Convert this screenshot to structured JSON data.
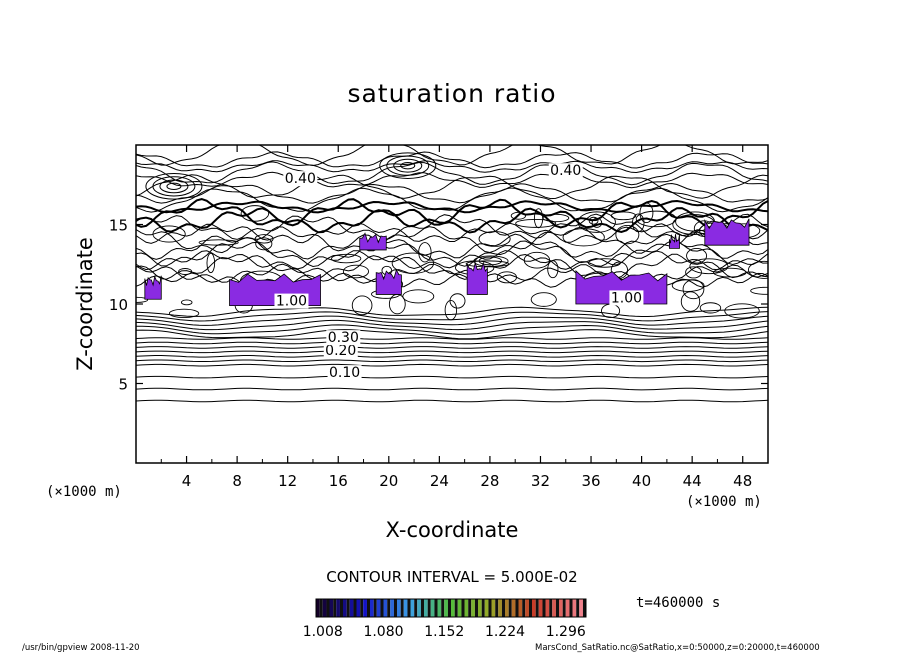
{
  "chart_data": {
    "type": "contour",
    "title": "saturation ratio",
    "xlabel": "X-coordinate",
    "ylabel": "Z-coordinate",
    "x_unit": "(×1000 m)",
    "z_unit": "(×1000 m)",
    "xlim": [
      0,
      50
    ],
    "ylim": [
      0,
      20
    ],
    "x_ticks": [
      "4",
      "8",
      "12",
      "16",
      "20",
      "24",
      "28",
      "32",
      "36",
      "40",
      "44",
      "48"
    ],
    "y_ticks": [
      "5",
      "10",
      "15"
    ],
    "contour_interval_text": "CONTOUR INTERVAL = 5.000E-02",
    "time_text": "t=460000 s",
    "contour_labels": [
      {
        "text": "0.40",
        "x": 13,
        "z": 17.6
      },
      {
        "text": "0.40",
        "x": 34,
        "z": 18.1
      },
      {
        "text": "0.10",
        "x": 16.5,
        "z": 5.4
      },
      {
        "text": "0.20",
        "x": 16.2,
        "z": 6.8
      },
      {
        "text": "0.30",
        "x": 16.4,
        "z": 7.6
      },
      {
        "text": "1.00",
        "x": 12.3,
        "z": 9.9
      },
      {
        "text": "1.00",
        "x": 38.8,
        "z": 10.1
      }
    ],
    "shading": {
      "colorbar_ticks": [
        "1.008",
        "1.080",
        "1.152",
        "1.224",
        "1.296"
      ],
      "colorbar_range": [
        1.0,
        1.32
      ],
      "fill_color": "#8a2be2",
      "supersaturated_regions": [
        {
          "x": [
            0.7,
            2.0
          ],
          "z": [
            10.3,
            11.6
          ]
        },
        {
          "x": [
            7.4,
            14.6
          ],
          "z": [
            9.9,
            11.7
          ]
        },
        {
          "x": [
            17.7,
            19.8
          ],
          "z": [
            13.4,
            14.3
          ]
        },
        {
          "x": [
            19.0,
            21.0
          ],
          "z": [
            10.6,
            12.0
          ]
        },
        {
          "x": [
            26.2,
            27.8
          ],
          "z": [
            10.6,
            12.4
          ]
        },
        {
          "x": [
            34.8,
            42.0
          ],
          "z": [
            10.0,
            11.9
          ]
        },
        {
          "x": [
            45.0,
            48.5
          ],
          "z": [
            13.7,
            15.2
          ]
        },
        {
          "x": [
            42.2,
            43.0
          ],
          "z": [
            13.5,
            14.2
          ]
        }
      ]
    }
  },
  "footer": {
    "left": "/usr/bin/gpview   2008-11-20",
    "right": "MarsCond_SatRatio.nc@SatRatio,x=0:50000,z=0:20000,t=460000"
  }
}
